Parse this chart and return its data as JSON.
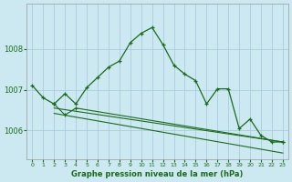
{
  "title": "Graphe pression niveau de la mer (hPa)",
  "bg_color": "#cce8f0",
  "grid_color": "#aaccdd",
  "line_color": "#1a6b1a",
  "x_ticks": [
    0,
    1,
    2,
    3,
    4,
    5,
    6,
    7,
    8,
    9,
    10,
    11,
    12,
    13,
    14,
    15,
    16,
    17,
    18,
    19,
    20,
    21,
    22,
    23
  ],
  "ylim": [
    1005.3,
    1009.1
  ],
  "yticks": [
    1006,
    1007,
    1008
  ],
  "line1_x": [
    0,
    1,
    2,
    3,
    4,
    5,
    6,
    7,
    8,
    9,
    10,
    11,
    12,
    13,
    14,
    15,
    16,
    17,
    18,
    19,
    20,
    21,
    22,
    23
  ],
  "line1_y": [
    1007.1,
    1006.8,
    1006.65,
    1006.9,
    1006.65,
    1007.05,
    1007.3,
    1007.55,
    1007.7,
    1008.15,
    1008.38,
    1008.52,
    1008.1,
    1007.6,
    1007.38,
    1007.22,
    1006.65,
    1007.02,
    1007.02,
    1006.05,
    1006.28,
    1005.88,
    1005.72,
    1005.72
  ],
  "line2_x": [
    2,
    3,
    4,
    23
  ],
  "line2_y": [
    1006.65,
    1006.38,
    1006.55,
    1005.72
  ],
  "line3_x": [
    2,
    23
  ],
  "line3_y": [
    1006.55,
    1005.72
  ],
  "line4_x": [
    2,
    23
  ],
  "line4_y": [
    1006.42,
    1005.45
  ]
}
